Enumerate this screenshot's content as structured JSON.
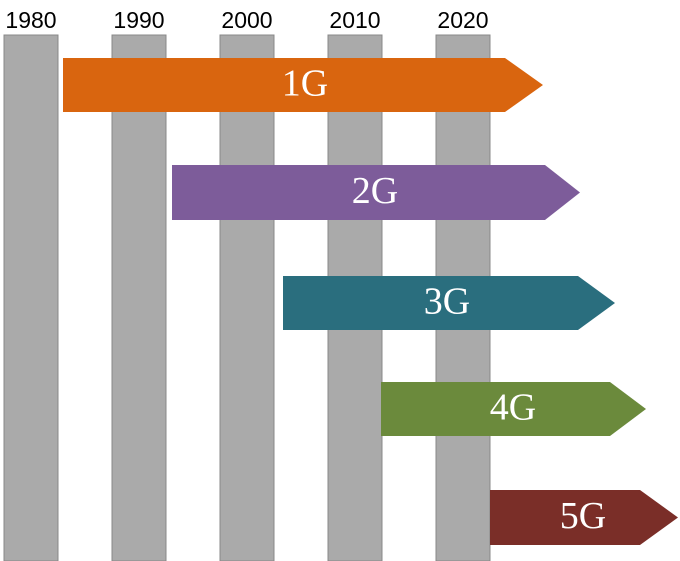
{
  "timeline": {
    "years": [
      "1980",
      "1990",
      "2000",
      "2010",
      "2020"
    ]
  },
  "generations": [
    {
      "label": "1G",
      "color": "#d9650f"
    },
    {
      "label": "2G",
      "color": "#7d5c9a"
    },
    {
      "label": "3G",
      "color": "#2a6e7e"
    },
    {
      "label": "4G",
      "color": "#6b8a3c"
    },
    {
      "label": "5G",
      "color": "#7a2e28"
    }
  ]
}
